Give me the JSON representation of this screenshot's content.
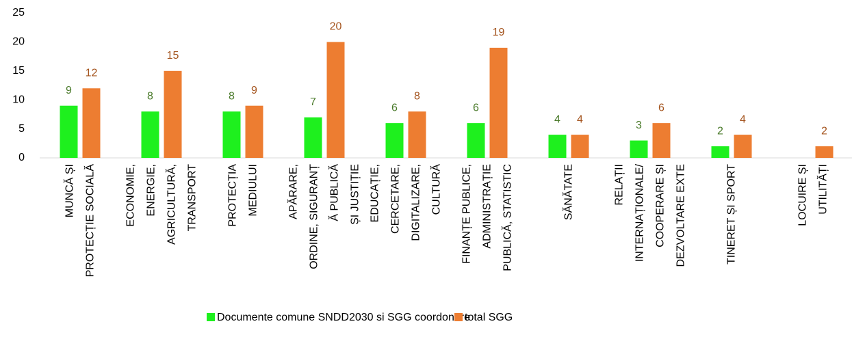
{
  "chart_data": {
    "type": "bar",
    "categories": [
      [
        "MUNCĂ ȘI",
        "PROTECȚIE SOCIALĂ"
      ],
      [
        "ECONOMIE,",
        "ENERGIE,",
        "AGRICULTURĂ,",
        "TRANSPORT"
      ],
      [
        "PROTECȚIA",
        "MEDIULUI"
      ],
      [
        "APĂRARE,",
        "ORDINE, SIGURANȚ",
        "Ă PUBLICĂ",
        "ȘI JUSTIȚIE"
      ],
      [
        "EDUCAȚIE,",
        "CERCETARE,",
        "DIGITALIZARE,",
        "CULTURĂ"
      ],
      [
        "FINANȚE PUBLICE,",
        "ADMINISTRAȚIE",
        "PUBLICĂ,  STATISTIC"
      ],
      [
        "SĂNĂTATE"
      ],
      [
        "RELAȚII",
        "INTERNAȚIONALE/",
        "COOPERARE ȘI",
        "DEZVOLTARE EXTE"
      ],
      [
        "TINERET ȘI SPORT"
      ],
      [
        "LOCUIRE ȘI",
        "UTILITĂȚI"
      ]
    ],
    "series": [
      {
        "name": "Documente comune SNDD2030 si SGG coordonare",
        "color": "#1ef01e",
        "label_color": "#4a7a2a",
        "values": [
          9,
          8,
          8,
          7,
          6,
          6,
          4,
          3,
          2,
          null
        ]
      },
      {
        "name": "total  SGG",
        "color": "#ed7d31",
        "label_color": "#a4541e",
        "values": [
          12,
          15,
          9,
          20,
          8,
          19,
          4,
          6,
          4,
          2
        ]
      }
    ],
    "ylim": [
      0,
      25
    ],
    "yticks": [
      0,
      5,
      10,
      15,
      20,
      25
    ],
    "grid": false,
    "legend": "bottom"
  }
}
